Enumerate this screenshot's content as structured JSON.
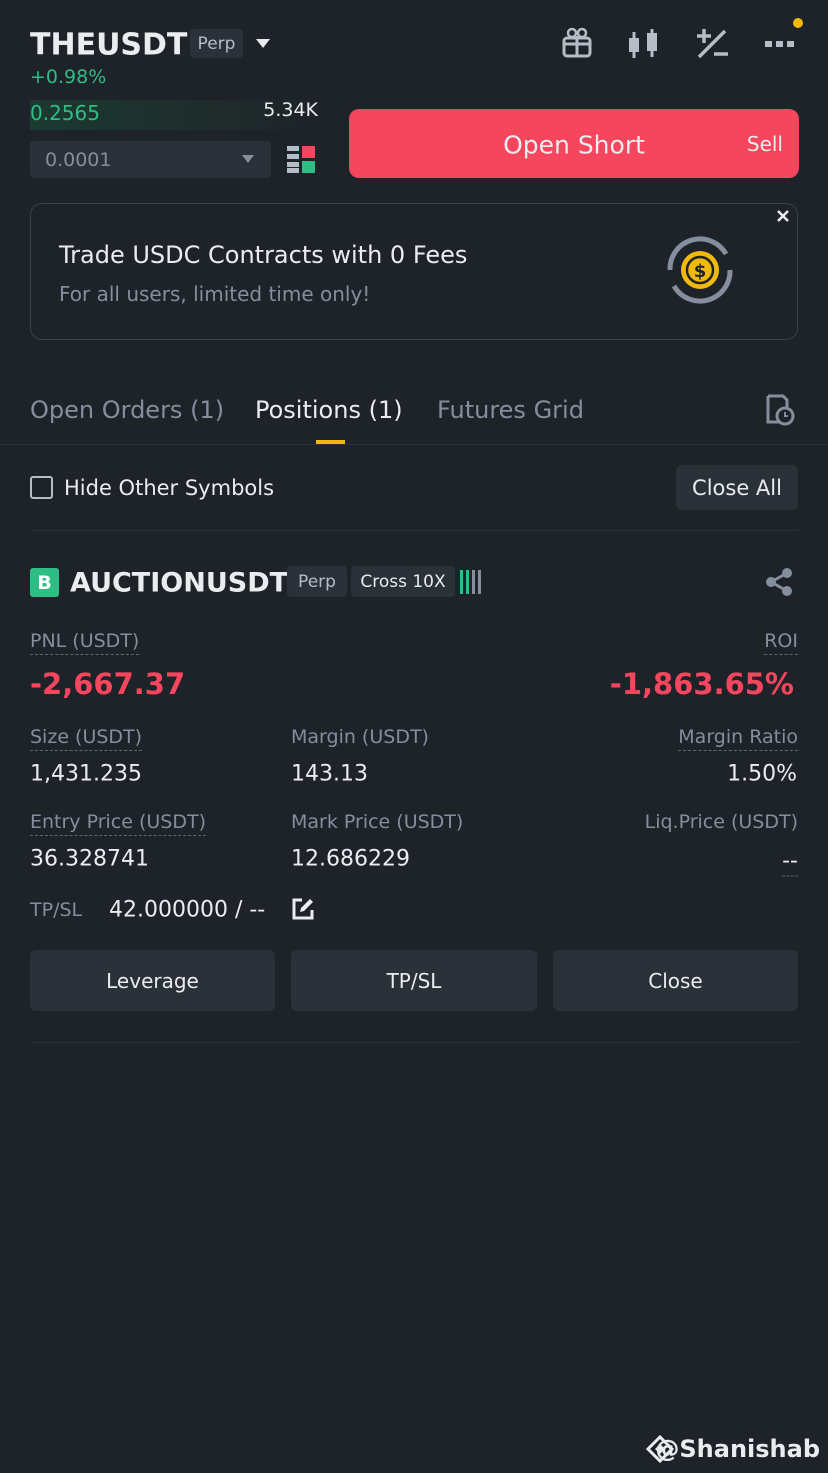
{
  "header": {
    "symbol": "THEUSDT",
    "badge": "Perp",
    "change": "+0.98%",
    "price": "0.2565",
    "volume": "5.34K",
    "tick_size": "0.0001"
  },
  "short_button": {
    "label": "Open Short",
    "side": "Sell"
  },
  "banner": {
    "title": "Trade USDC Contracts with 0 Fees",
    "subtitle": "For all users, limited time only!"
  },
  "tabs": [
    "Open Orders (1)",
    "Positions (1)",
    "Futures Grid"
  ],
  "filter": {
    "label": "Hide Other Symbols",
    "button": "Close All"
  },
  "position": {
    "side": "B",
    "symbol": "AUCTIONUSDT",
    "badges": [
      "Perp",
      "Cross 10X"
    ],
    "fields": [
      {
        "label": "PNL (USDT)",
        "value": "-2,667.37"
      },
      {
        "label": "ROI",
        "value": "-1,863.65%"
      },
      {
        "label": "Size (USDT)",
        "value": "1,431.235"
      },
      {
        "label": "Margin (USDT)",
        "value": "143.13"
      },
      {
        "label": "Margin Ratio",
        "value": "1.50%"
      },
      {
        "label": "Entry Price (USDT)",
        "value": "36.328741"
      },
      {
        "label": "Mark Price (USDT)",
        "value": "12.686229"
      },
      {
        "label": "Liq.Price (USDT)",
        "value": "--"
      }
    ],
    "tpsl_label": "TP/SL",
    "tpsl_value": "42.000000 / --",
    "buttons": [
      "Leverage",
      "TP/SL",
      "Close"
    ]
  },
  "watermark": "@Shanishab"
}
